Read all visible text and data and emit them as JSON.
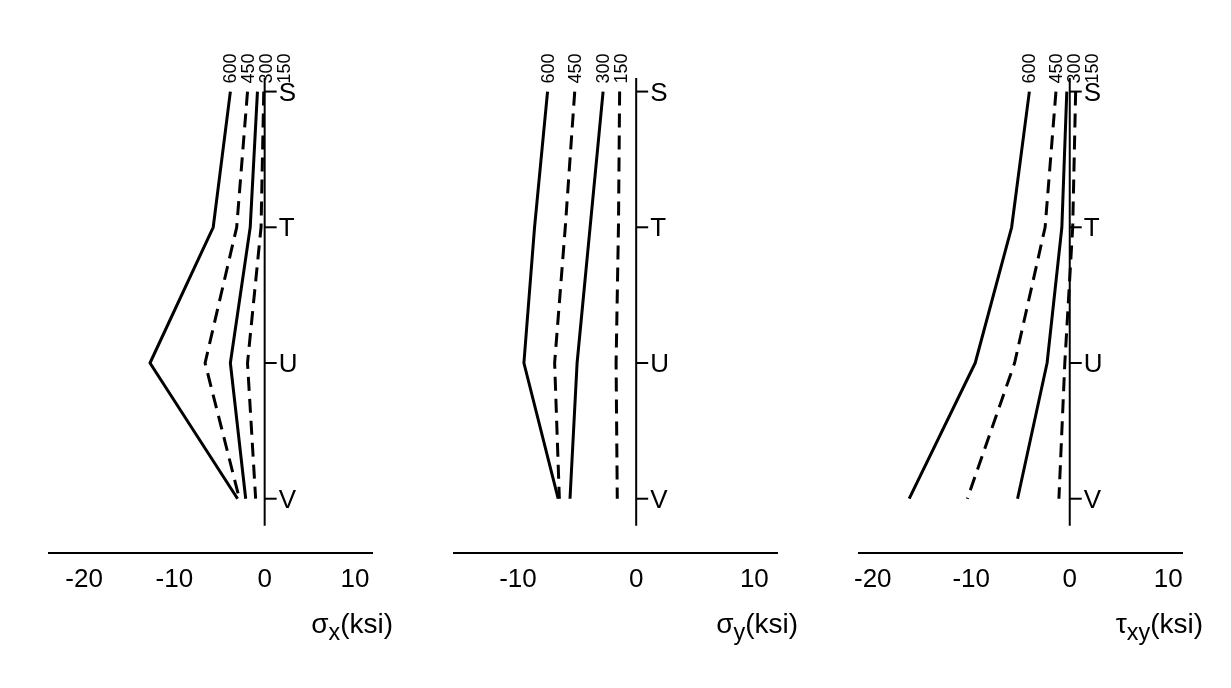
{
  "chart_data": [
    {
      "type": "line",
      "orientation": "horizontal",
      "xlabel": "σ$_{x}$(ksi)",
      "categories": [
        "S",
        "T",
        "U",
        "V"
      ],
      "xlim": [
        -24,
        12
      ],
      "xticks": [
        -20,
        -10,
        0,
        10
      ],
      "grid": false,
      "legend": false,
      "marker": "none",
      "series": [
        {
          "name": "600",
          "color": "#000000",
          "line_style": "solid",
          "values": [
            -3.8,
            -5.7,
            -12.7,
            -3.0
          ]
        },
        {
          "name": "450",
          "color": "#000000",
          "line_style": "dashed",
          "values": [
            -1.9,
            -3.1,
            -6.6,
            -2.8
          ]
        },
        {
          "name": "300",
          "color": "#000000",
          "line_style": "solid",
          "values": [
            -0.8,
            -1.6,
            -3.8,
            -2.1
          ]
        },
        {
          "name": "150",
          "color": "#000000",
          "line_style": "dashed",
          "values": [
            -0.1,
            -0.4,
            -1.9,
            -1.0
          ]
        }
      ]
    },
    {
      "type": "line",
      "orientation": "horizontal",
      "xlabel": "σ$_{y}$(ksi)",
      "categories": [
        "S",
        "T",
        "U",
        "V"
      ],
      "xlim": [
        -15.5,
        12
      ],
      "xticks": [
        -10,
        0,
        10
      ],
      "grid": false,
      "legend": false,
      "marker": "none",
      "series": [
        {
          "name": "600",
          "color": "#000000",
          "line_style": "solid",
          "values": [
            -7.5,
            -8.6,
            -9.5,
            -6.6
          ]
        },
        {
          "name": "450",
          "color": "#000000",
          "line_style": "dashed",
          "values": [
            -5.2,
            -6.0,
            -6.9,
            -6.5
          ]
        },
        {
          "name": "300",
          "color": "#000000",
          "line_style": "solid",
          "values": [
            -2.8,
            -3.9,
            -5.0,
            -5.6
          ]
        },
        {
          "name": "150",
          "color": "#000000",
          "line_style": "dashed",
          "values": [
            -1.4,
            -1.5,
            -1.7,
            -1.6
          ]
        }
      ]
    },
    {
      "type": "line",
      "orientation": "horizontal",
      "xlabel": "τ$_{xy}$(ksi)",
      "categories": [
        "S",
        "T",
        "U",
        "V"
      ],
      "xlim": [
        -21.5,
        11.5
      ],
      "xticks": [
        -20,
        -10,
        0,
        10
      ],
      "grid": false,
      "legend": false,
      "marker": "none",
      "series": [
        {
          "name": "600",
          "color": "#000000",
          "line_style": "solid",
          "values": [
            -4.1,
            -5.9,
            -9.6,
            -16.3
          ]
        },
        {
          "name": "450",
          "color": "#000000",
          "line_style": "dashed",
          "values": [
            -1.4,
            -2.5,
            -5.6,
            -10.4
          ]
        },
        {
          "name": "300",
          "color": "#000000",
          "line_style": "solid",
          "values": [
            -0.3,
            -0.8,
            -2.3,
            -5.3
          ]
        },
        {
          "name": "150",
          "color": "#000000",
          "line_style": "dashed",
          "values": [
            0.6,
            0.3,
            -0.5,
            -1.1
          ]
        }
      ]
    }
  ]
}
